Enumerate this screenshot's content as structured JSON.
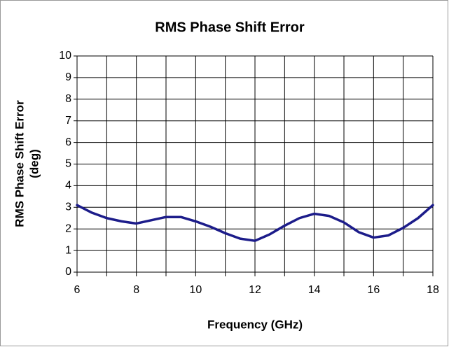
{
  "chart_data": {
    "type": "line",
    "title": "RMS Phase Shift Error",
    "xlabel": "Frequency (GHz)",
    "ylabel": [
      "RMS Phase Shift Error",
      "(deg)"
    ],
    "x": [
      6,
      6.5,
      7,
      7.5,
      8,
      8.5,
      9,
      9.5,
      10,
      10.5,
      11,
      11.5,
      12,
      12.5,
      13,
      13.5,
      14,
      14.5,
      15,
      15.5,
      16,
      16.5,
      17,
      17.5,
      18
    ],
    "series": [
      {
        "name": "RMS Phase Shift Error",
        "color": "#1c1c8a",
        "values": [
          3.1,
          2.75,
          2.5,
          2.35,
          2.25,
          2.4,
          2.55,
          2.55,
          2.35,
          2.1,
          1.8,
          1.55,
          1.45,
          1.75,
          2.15,
          2.5,
          2.7,
          2.6,
          2.3,
          1.85,
          1.6,
          1.7,
          2.05,
          2.5,
          3.1
        ]
      }
    ],
    "xlim": [
      6,
      18
    ],
    "xticks": [
      6,
      8,
      10,
      12,
      14,
      16,
      18
    ],
    "x_minor_ticks": [
      7,
      9,
      11,
      13,
      15,
      17
    ],
    "ylim": [
      0,
      10
    ],
    "yticks": [
      0,
      1,
      2,
      3,
      4,
      5,
      6,
      7,
      8,
      9,
      10
    ],
    "grid": true
  }
}
